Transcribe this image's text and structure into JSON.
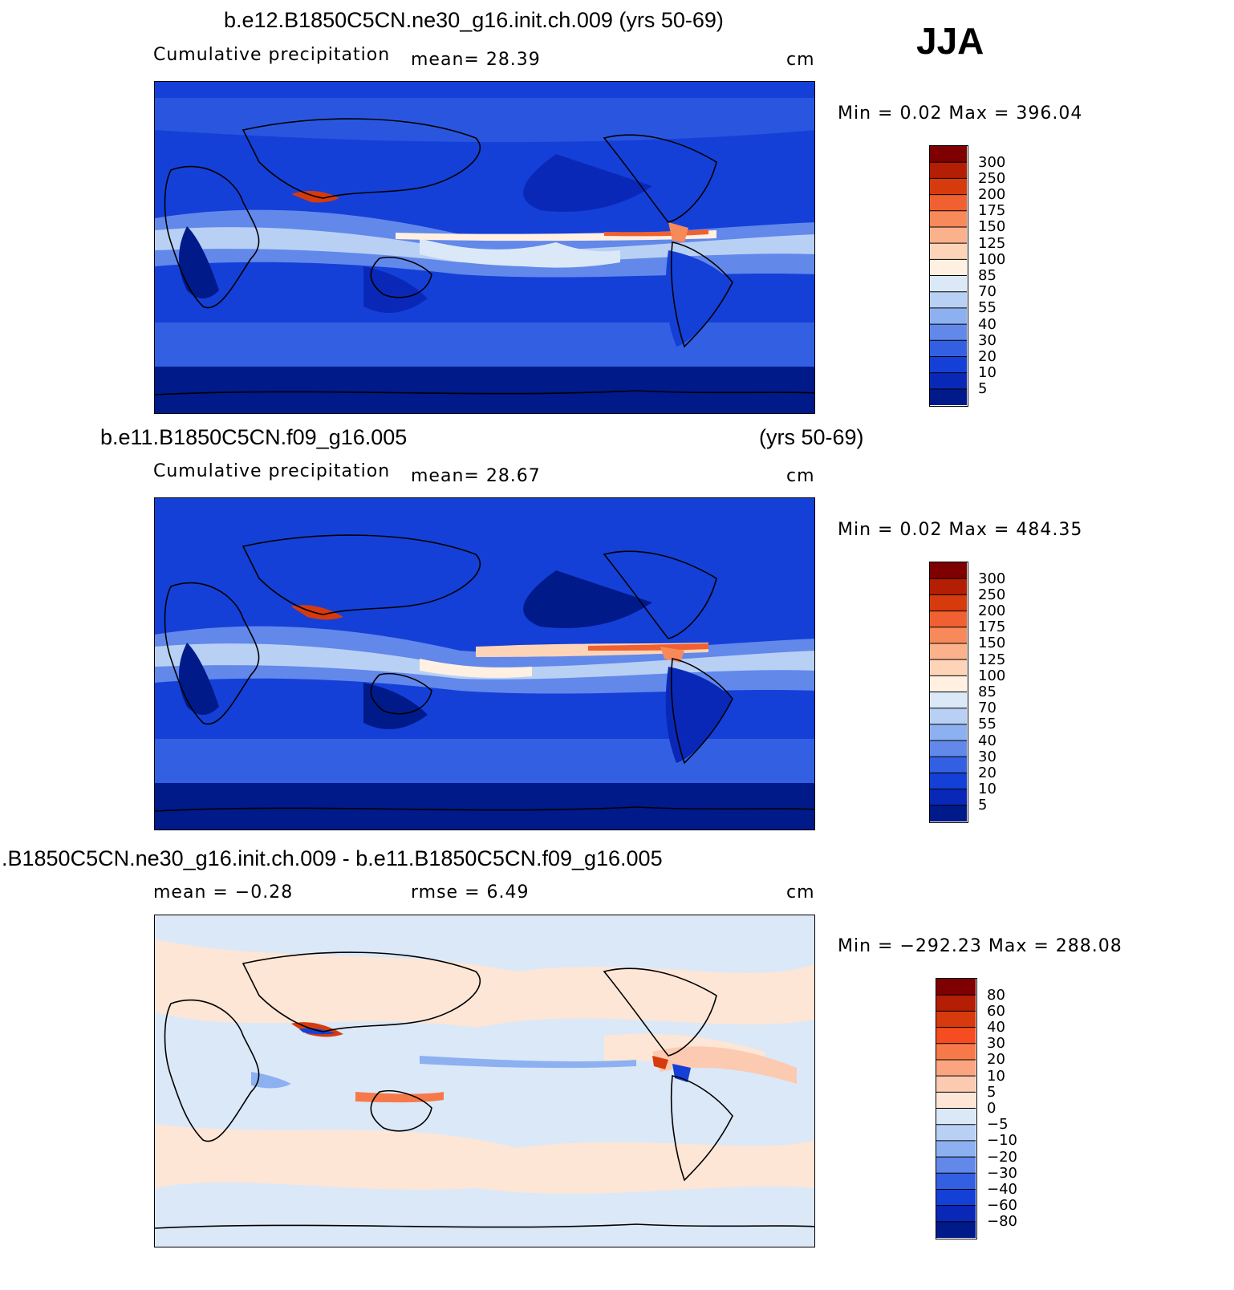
{
  "season": "JJA",
  "panels": [
    {
      "title": "b.e12.B1850C5CN.ne30_g16.init.ch.009 (yrs 50-69)",
      "title_right": "",
      "left_label": "Cumulative precipitation",
      "stat1": "mean=  28.39",
      "stat2": "",
      "units": "cm",
      "minmax": "Min =   0.02 Max = 396.04",
      "colorbar_labels": [
        "300",
        "250",
        "200",
        "175",
        "150",
        "125",
        "100",
        "85",
        "70",
        "55",
        "40",
        "30",
        "20",
        "10",
        "5"
      ],
      "colorbar_colors": [
        "#7f0000",
        "#b31e05",
        "#d73a0c",
        "#f06030",
        "#f7895a",
        "#fbb18c",
        "#fdd4b8",
        "#fff0e2",
        "#dbe8f8",
        "#b9d0f5",
        "#8db0f0",
        "#6288ea",
        "#3360e2",
        "#1440d8",
        "#0a28b8",
        "#001a8a"
      ]
    },
    {
      "title": "b.e11.B1850C5CN.f09_g16.005",
      "title_right": "(yrs 50-69)",
      "left_label": "Cumulative precipitation",
      "stat1": "mean=  28.67",
      "stat2": "",
      "units": "cm",
      "minmax": "Min =   0.02 Max = 484.35",
      "colorbar_labels": [
        "300",
        "250",
        "200",
        "175",
        "150",
        "125",
        "100",
        "85",
        "70",
        "55",
        "40",
        "30",
        "20",
        "10",
        "5"
      ],
      "colorbar_colors": [
        "#7f0000",
        "#b31e05",
        "#d73a0c",
        "#f06030",
        "#f7895a",
        "#fbb18c",
        "#fdd4b8",
        "#fff0e2",
        "#dbe8f8",
        "#b9d0f5",
        "#8db0f0",
        "#6288ea",
        "#3360e2",
        "#1440d8",
        "#0a28b8",
        "#001a8a"
      ]
    },
    {
      "title": ".B1850C5CN.ne30_g16.init.ch.009 - b.e11.B1850C5CN.f09_g16.005",
      "title_right": "",
      "left_label": "",
      "stat1": "mean =  −0.28",
      "stat2": "rmse =   6.49",
      "units": "cm",
      "minmax": "Min = −292.23 Max = 288.08",
      "colorbar_labels": [
        "80",
        "60",
        "40",
        "30",
        "20",
        "10",
        "5",
        "0",
        "−5",
        "−10",
        "−20",
        "−30",
        "−40",
        "−60",
        "−80"
      ],
      "colorbar_colors": [
        "#7f0000",
        "#b31e05",
        "#d73a0c",
        "#f54d20",
        "#f7794a",
        "#fba480",
        "#fccab0",
        "#fde6d6",
        "#dbe8f8",
        "#b9d0f5",
        "#8db0f0",
        "#6288ea",
        "#3360e2",
        "#1440d8",
        "#0a28b8",
        "#001a8a"
      ]
    }
  ]
}
